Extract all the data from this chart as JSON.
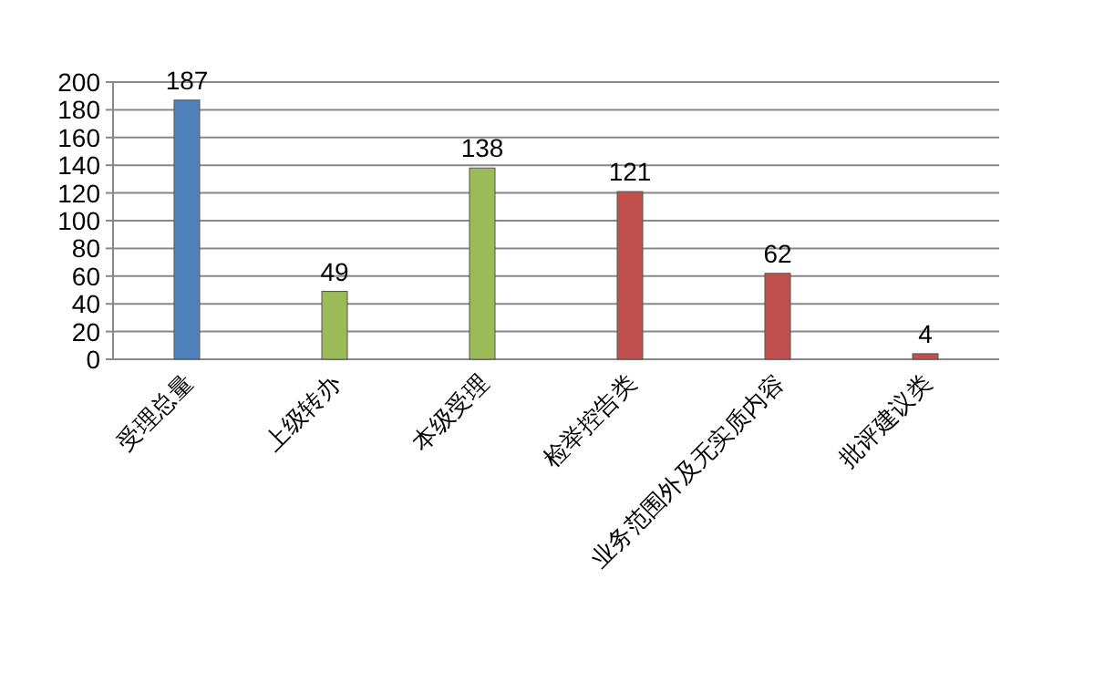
{
  "chart_data": {
    "type": "bar",
    "categories": [
      "受理总量",
      "上级转办",
      "本级受理",
      "检举控告类",
      "业务范围外及无实质内容",
      "批评建议类"
    ],
    "values": [
      187,
      49,
      138,
      121,
      62,
      4
    ],
    "colors": [
      "#4f81bd",
      "#9bbb59",
      "#9bbb59",
      "#c0504d",
      "#c0504d",
      "#c0504d"
    ],
    "ylim": [
      0,
      200
    ],
    "yticks": [
      0,
      20,
      40,
      60,
      80,
      100,
      120,
      140,
      160,
      180,
      200
    ],
    "grid": "y",
    "data_labels": true
  }
}
